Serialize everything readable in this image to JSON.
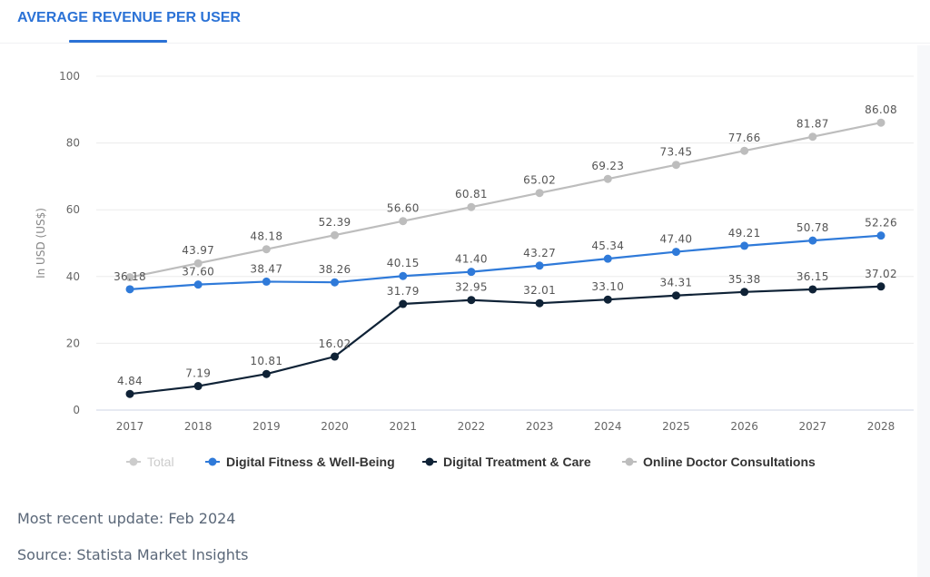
{
  "header": {
    "tab_title": "AVERAGE REVENUE PER USER"
  },
  "footer": {
    "update": "Most recent update: Feb 2024",
    "source": "Source: Statista Market Insights"
  },
  "chart_data": {
    "type": "line",
    "title": "Average Revenue per User",
    "xlabel": "",
    "ylabel": "In USD (US$)",
    "ylim": [
      0,
      100
    ],
    "yticks": [
      0,
      20,
      40,
      60,
      80,
      100
    ],
    "grid": true,
    "legend_position": "bottom",
    "x": [
      "2017",
      "2018",
      "2019",
      "2020",
      "2021",
      "2022",
      "2023",
      "2024",
      "2025",
      "2026",
      "2027",
      "2028"
    ],
    "legend": [
      {
        "name": "Total",
        "color": "#cccccc",
        "disabled": true
      },
      {
        "name": "Digital Fitness & Well-Being",
        "color": "#2f7ad9",
        "disabled": false
      },
      {
        "name": "Digital Treatment & Care",
        "color": "#0f2236",
        "disabled": false
      },
      {
        "name": "Online Doctor Consultations",
        "color": "#bdbdbd",
        "disabled": false
      }
    ],
    "series": [
      {
        "name": "Online Doctor Consultations",
        "color": "#bdbdbd",
        "values": [
          39.76,
          43.97,
          48.18,
          52.39,
          56.6,
          60.81,
          65.02,
          69.23,
          73.45,
          77.66,
          81.87,
          86.08
        ],
        "labels": [
          "",
          "43.97",
          "48.18",
          "52.39",
          "56.60",
          "60.81",
          "65.02",
          "69.23",
          "73.45",
          "77.66",
          "81.87",
          "86.08"
        ]
      },
      {
        "name": "Digital Fitness & Well-Being",
        "color": "#2f7ad9",
        "values": [
          36.18,
          37.6,
          38.47,
          38.26,
          40.15,
          41.4,
          43.27,
          45.34,
          47.4,
          49.21,
          50.78,
          52.26
        ],
        "labels": [
          "36.18",
          "37.60",
          "38.47",
          "38.26",
          "40.15",
          "41.40",
          "43.27",
          "45.34",
          "47.40",
          "49.21",
          "50.78",
          "52.26"
        ]
      },
      {
        "name": "Digital Treatment & Care",
        "color": "#0f2236",
        "values": [
          4.84,
          7.19,
          10.81,
          16.02,
          31.79,
          32.95,
          32.01,
          33.1,
          34.31,
          35.38,
          36.15,
          37.02
        ],
        "labels": [
          "4.84",
          "7.19",
          "10.81",
          "16.02",
          "31.79",
          "32.95",
          "32.01",
          "33.10",
          "34.31",
          "35.38",
          "36.15",
          "37.02"
        ]
      }
    ]
  }
}
